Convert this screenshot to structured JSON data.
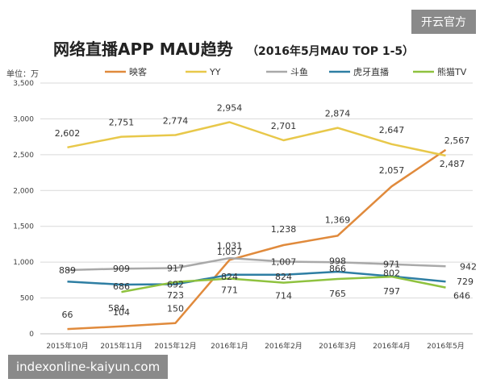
{
  "watermark_top": "开云官方",
  "watermark_bottom": "indexonline-kaiyun.com",
  "colors": {
    "映客": "#e08a3c",
    "YY": "#e8c84a",
    "斗鱼": "#a9a9a9",
    "虎牙直播": "#2e7ea3",
    "熊猫TV": "#8fc23f",
    "grid": "#d9d9d9",
    "text": "#404040"
  },
  "chart_data": {
    "type": "line",
    "title": "网络直播APP MAU趋势",
    "subtitle": "（2016年5月MAU TOP 1-5）",
    "unit_label": "单位：万",
    "categories": [
      "2015年10月",
      "2015年11月",
      "2015年12月",
      "2016年1月",
      "2016年2月",
      "2016年3月",
      "2016年4月",
      "2016年5月"
    ],
    "ylim": [
      0,
      3500
    ],
    "yticks": [
      "0",
      "500",
      "1,000",
      "1,500",
      "2,000",
      "2,500",
      "3,000",
      "3,500"
    ],
    "grid": true,
    "legend_position": "top",
    "series": [
      {
        "name": "映客",
        "values": [
          66,
          104,
          150,
          1031,
          1238,
          1369,
          2057,
          2567
        ],
        "labels": [
          "66",
          "104",
          "150",
          "1,031",
          "1,238",
          "1,369",
          "2,057",
          "2,567"
        ]
      },
      {
        "name": "YY",
        "values": [
          2602,
          2751,
          2774,
          2954,
          2701,
          2874,
          2647,
          2487
        ],
        "labels": [
          "2,602",
          "2,751",
          "2,774",
          "2,954",
          "2,701",
          "2,874",
          "2,647",
          "2,487"
        ]
      },
      {
        "name": "斗鱼",
        "values": [
          889,
          909,
          917,
          1057,
          1007,
          998,
          971,
          942
        ],
        "labels": [
          "889",
          "909",
          "917",
          "1,057",
          "1,007",
          "998",
          "971",
          "942"
        ]
      },
      {
        "name": "虎牙直播",
        "values": [
          729,
          686,
          692,
          824,
          824,
          866,
          802,
          729
        ],
        "labels": [
          "",
          "686",
          "692",
          "824",
          "824",
          "866",
          "802",
          "729"
        ]
      },
      {
        "name": "熊猫TV",
        "values": [
          null,
          584,
          723,
          771,
          714,
          765,
          797,
          646
        ],
        "labels": [
          "",
          "584",
          "723",
          "771",
          "714",
          "765",
          "797",
          "646"
        ]
      }
    ]
  }
}
